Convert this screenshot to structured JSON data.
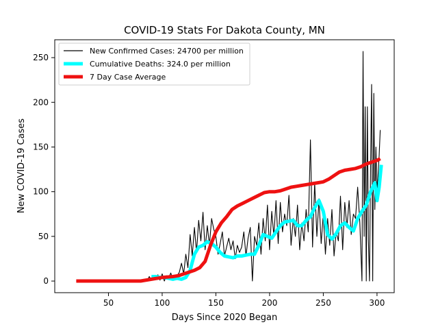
{
  "chart_data": {
    "type": "line",
    "title": "COVID-19 Stats For Dakota County, MN",
    "xlabel": "Days Since 2020 Began",
    "ylabel": "New COVID-19 Cases",
    "xlim": [
      0,
      316
    ],
    "ylim": [
      -13,
      270
    ],
    "xticks": [
      50,
      100,
      150,
      200,
      250,
      300
    ],
    "yticks": [
      0,
      50,
      100,
      150,
      200,
      250
    ],
    "grid": false,
    "legend_position": "top-left",
    "series": [
      {
        "name": "New Confirmed Cases: 24700 per million",
        "color": "#000000",
        "style": "thin",
        "x": [
          20,
          40,
          60,
          78,
          84,
          86,
          88,
          90,
          92,
          94,
          96,
          98,
          100,
          102,
          104,
          106,
          108,
          110,
          112,
          114,
          116,
          118,
          120,
          122,
          124,
          126,
          128,
          130,
          132,
          134,
          136,
          138,
          140,
          142,
          144,
          146,
          148,
          150,
          152,
          154,
          156,
          158,
          160,
          162,
          164,
          166,
          168,
          170,
          172,
          174,
          176,
          178,
          180,
          182,
          184,
          186,
          188,
          190,
          192,
          194,
          196,
          198,
          200,
          202,
          204,
          206,
          208,
          210,
          212,
          214,
          216,
          218,
          220,
          222,
          224,
          226,
          228,
          230,
          232,
          234,
          236,
          238,
          240,
          242,
          244,
          246,
          248,
          250,
          252,
          254,
          256,
          258,
          260,
          262,
          264,
          266,
          268,
          270,
          272,
          274,
          276,
          278,
          280,
          282,
          284,
          286,
          287,
          288,
          289,
          290,
          291,
          292,
          293,
          294,
          295,
          296,
          297,
          298,
          299,
          300,
          301,
          302,
          303
        ],
        "values": [
          0,
          0,
          0,
          0,
          2,
          0,
          5,
          1,
          6,
          2,
          7,
          1,
          8,
          0,
          6,
          3,
          9,
          2,
          5,
          6,
          10,
          20,
          8,
          30,
          15,
          52,
          28,
          60,
          32,
          68,
          45,
          77,
          35,
          62,
          40,
          70,
          58,
          50,
          30,
          42,
          55,
          28,
          38,
          48,
          35,
          45,
          25,
          40,
          32,
          38,
          55,
          28,
          48,
          60,
          0,
          50,
          40,
          65,
          30,
          70,
          45,
          85,
          35,
          78,
          50,
          90,
          42,
          88,
          55,
          75,
          62,
          96,
          40,
          70,
          50,
          85,
          35,
          65,
          45,
          80,
          55,
          158,
          38,
          110,
          50,
          92,
          42,
          75,
          30,
          70,
          40,
          80,
          28,
          55,
          45,
          95,
          35,
          88,
          60,
          90,
          52,
          75,
          70,
          105,
          65,
          0,
          257,
          50,
          195,
          0,
          195,
          45,
          0,
          130,
          220,
          0,
          210,
          80,
          150,
          100,
          120,
          140,
          169
        ],
        "values_comment": "daily new cases, estimated from chart"
      },
      {
        "name": "Cumulative Deaths: 324.0 per million",
        "color": "#00ffff",
        "style": "thick",
        "x": [
          90,
          94,
          98,
          102,
          106,
          110,
          114,
          118,
          122,
          126,
          130,
          134,
          138,
          142,
          146,
          150,
          154,
          158,
          162,
          166,
          170,
          174,
          178,
          182,
          186,
          190,
          194,
          198,
          202,
          206,
          210,
          214,
          218,
          222,
          226,
          230,
          234,
          238,
          242,
          246,
          250,
          254,
          258,
          262,
          266,
          270,
          274,
          278,
          282,
          286,
          290,
          294,
          298,
          300,
          302,
          304
        ],
        "values": [
          5,
          5,
          4,
          4,
          3,
          2,
          3,
          2,
          4,
          12,
          30,
          38,
          40,
          44,
          42,
          38,
          32,
          28,
          27,
          26,
          28,
          28,
          29,
          30,
          30,
          40,
          52,
          50,
          48,
          55,
          62,
          66,
          67,
          68,
          62,
          62,
          68,
          72,
          82,
          90,
          78,
          52,
          47,
          53,
          62,
          65,
          60,
          56,
          70,
          78,
          85,
          100,
          110,
          90,
          105,
          130
        ]
      },
      {
        "name": "7 Day Case Average",
        "color": "#ee1111",
        "style": "thick",
        "x": [
          20,
          40,
          60,
          80,
          90,
          100,
          110,
          115,
          120,
          125,
          130,
          135,
          140,
          145,
          150,
          155,
          160,
          165,
          170,
          175,
          180,
          185,
          190,
          195,
          200,
          205,
          210,
          215,
          220,
          225,
          230,
          235,
          240,
          245,
          250,
          255,
          260,
          265,
          270,
          275,
          280,
          285,
          290,
          295,
          300,
          303
        ],
        "values": [
          0,
          0,
          0,
          0,
          2,
          4,
          5,
          6,
          8,
          10,
          12,
          15,
          22,
          40,
          55,
          65,
          72,
          80,
          84,
          87,
          90,
          93,
          96,
          99,
          100,
          100,
          101,
          103,
          105,
          106,
          107,
          108,
          109,
          110,
          111,
          114,
          118,
          122,
          124,
          125,
          126,
          128,
          131,
          133,
          135,
          137
        ]
      }
    ]
  }
}
